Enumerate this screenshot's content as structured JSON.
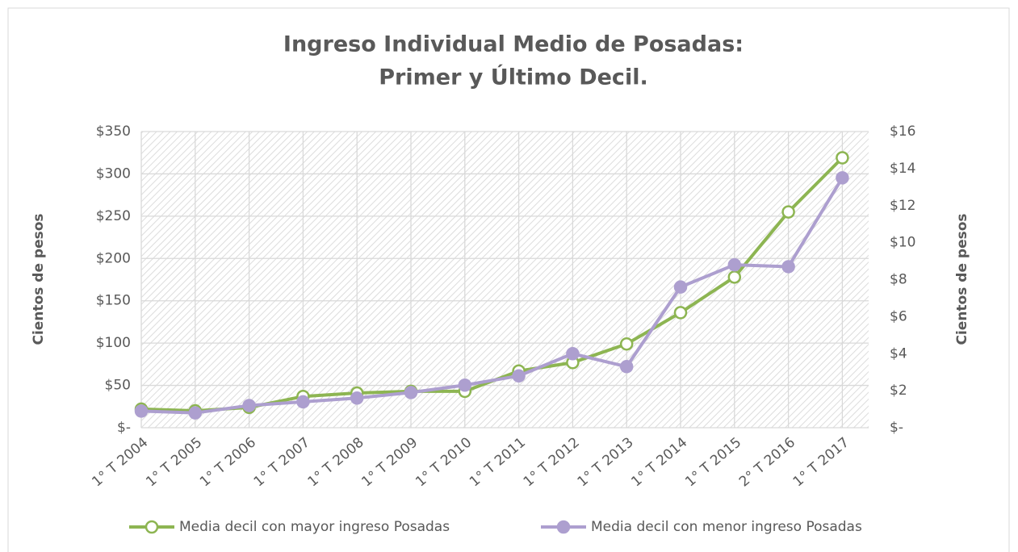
{
  "chart_data": {
    "type": "line",
    "title": [
      "Ingreso Individual Medio de Posadas:",
      "Primer y Último Decil."
    ],
    "ylabel": "Cientos de pesos",
    "y2label": "Cientos de pesos",
    "categories": [
      "1° T 2004",
      "1° T 2005",
      "1° T 2006",
      "1° T 2007",
      "1° T 2008",
      "1° T 2009",
      "1° T 2010",
      "1° T 2011",
      "1° T 2012",
      "1° T 2013",
      "1° T 2014",
      "1° T 2015",
      "2° T 2016",
      "1° T 2017"
    ],
    "series": [
      {
        "name": "Media decil con mayor ingreso Posadas",
        "color": "#8db552",
        "marker": "hollow",
        "values": [
          22,
          20,
          24,
          37,
          41,
          43,
          43,
          67,
          77,
          99,
          136,
          178,
          255,
          319
        ]
      },
      {
        "name": "Media decil con menor ingreso Posadas",
        "color": "#ad9fcf",
        "marker": "filled",
        "axis": "y2",
        "values": [
          0.9,
          0.8,
          1.2,
          1.4,
          1.6,
          1.9,
          2.3,
          2.8,
          4.0,
          3.3,
          7.6,
          8.8,
          8.7,
          13.5
        ]
      }
    ],
    "ylim": [
      0,
      350
    ],
    "yticks": [
      {
        "value": 0,
        "label": "$-"
      },
      {
        "value": 50,
        "label": "$50"
      },
      {
        "value": 100,
        "label": "$100"
      },
      {
        "value": 150,
        "label": "$150"
      },
      {
        "value": 200,
        "label": "$200"
      },
      {
        "value": 250,
        "label": "$250"
      },
      {
        "value": 300,
        "label": "$300"
      },
      {
        "value": 350,
        "label": "$350"
      }
    ],
    "y2lim": [
      0,
      16
    ],
    "y2ticks": [
      {
        "value": 0,
        "label": "$-"
      },
      {
        "value": 2,
        "label": "$2"
      },
      {
        "value": 4,
        "label": "$4"
      },
      {
        "value": 6,
        "label": "$6"
      },
      {
        "value": 8,
        "label": "$8"
      },
      {
        "value": 10,
        "label": "$10"
      },
      {
        "value": 12,
        "label": "$12"
      },
      {
        "value": 14,
        "label": "$14"
      },
      {
        "value": 16,
        "label": "$16"
      }
    ],
    "grid": true,
    "legend": "bottom"
  }
}
